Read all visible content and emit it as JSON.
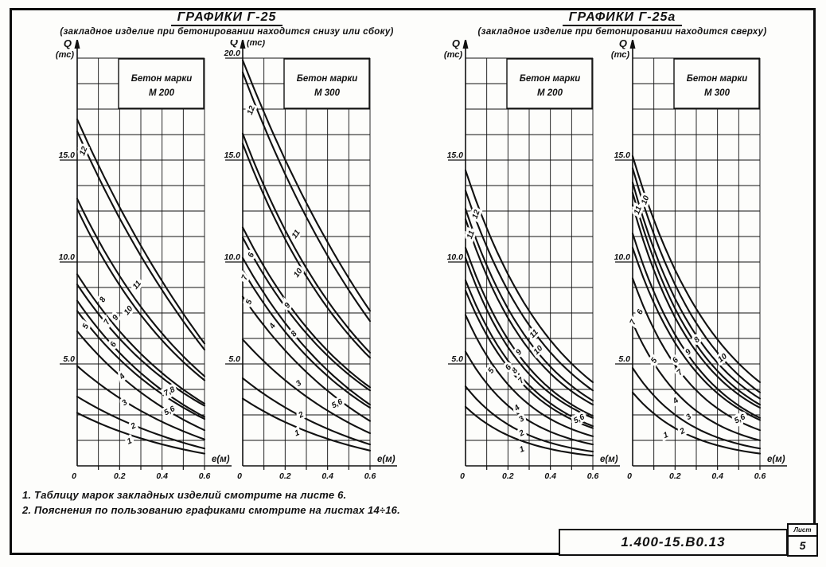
{
  "sections": [
    {
      "title": "ГРАФИКИ Г-25",
      "subtitle": "(закладное изделие при бетонировании находится снизу или сбоку)"
    },
    {
      "title": "ГРАФИКИ Г-25а",
      "subtitle": "(закладное изделие при бетонировании находится сверху)"
    }
  ],
  "notes": [
    "1. Таблицу марок закладных изделий смотрите на листе 6.",
    "2. Пояснения по пользованию графиками смотрите на листах 14÷16."
  ],
  "title_block": {
    "code": "1.400-15.В0.13",
    "sheet_label": "Лист",
    "sheet_number": "5"
  },
  "line_color": "#111111",
  "chart_data": [
    {
      "type": "line",
      "group": "ГРАФИКИ Г-25",
      "header": [
        "Бетон марки",
        "М 200"
      ],
      "ylabel": "Q",
      "yunit": "(тс)",
      "yunit_side": "below",
      "xlabel": "e(м)",
      "xlim": [
        0,
        0.6
      ],
      "ylim": [
        0,
        20
      ],
      "grid": {
        "on": true,
        "x_step": 0.1,
        "y_step": 1.25
      },
      "x_ticks": [
        {
          "v": 0,
          "t": "0"
        },
        {
          "v": 0.2,
          "t": "0.2"
        },
        {
          "v": 0.4,
          "t": "0.4"
        },
        {
          "v": 0.6,
          "t": "0.6"
        }
      ],
      "y_ticks": [
        {
          "v": 5,
          "t": "5.0"
        },
        {
          "v": 10,
          "t": "10.0"
        },
        {
          "v": 15,
          "t": "15.0"
        }
      ],
      "x": [
        0,
        0.3,
        0.6
      ],
      "series": [
        {
          "name": "1",
          "q": [
            2.6,
            1.35,
            0.6
          ]
        },
        {
          "name": "2",
          "q": [
            3.4,
            1.85,
            0.85
          ]
        },
        {
          "name": "3",
          "q": [
            4.9,
            2.7,
            1.3
          ]
        },
        {
          "name": "4",
          "q": [
            6.6,
            3.6,
            1.75
          ]
        },
        {
          "name": "5",
          "q": [
            7.6,
            4.3,
            2.3
          ]
        },
        {
          "name": "6",
          "q": [
            8.1,
            4.55,
            2.4
          ]
        },
        {
          "name": "7",
          "q": [
            8.9,
            5.2,
            2.95
          ]
        },
        {
          "name": "8",
          "q": [
            9.4,
            5.5,
            3.05
          ]
        },
        {
          "name": "9",
          "q": [
            12.6,
            7.4,
            4.2
          ]
        },
        {
          "name": "10",
          "q": [
            13.1,
            7.8,
            4.4
          ]
        },
        {
          "name": "11",
          "q": [
            16.4,
            10.3,
            5.7
          ]
        },
        {
          "name": "12",
          "q": [
            17.0,
            10.8,
            6.0
          ]
        }
      ],
      "labels": [
        {
          "t": "12",
          "e": 0.04,
          "q": 15.4,
          "r": -68
        },
        {
          "t": "11",
          "e": 0.29,
          "q": 8.8,
          "r": -50
        },
        {
          "t": "10",
          "e": 0.25,
          "q": 7.55,
          "r": -52
        },
        {
          "t": "9",
          "e": 0.19,
          "q": 7.2,
          "r": -55
        },
        {
          "t": "8",
          "e": 0.13,
          "q": 8.1,
          "r": -62
        },
        {
          "t": "7",
          "e": 0.15,
          "q": 7.0,
          "r": -62
        },
        {
          "t": "6",
          "e": 0.18,
          "q": 5.9,
          "r": -62
        },
        {
          "t": "5",
          "e": 0.05,
          "q": 6.8,
          "r": -65
        },
        {
          "t": "4",
          "e": 0.22,
          "q": 4.3,
          "r": -45
        },
        {
          "t": "3",
          "e": 0.23,
          "q": 3.0,
          "r": -35
        },
        {
          "t": "2",
          "e": 0.27,
          "q": 1.85,
          "r": -28
        },
        {
          "t": "1",
          "e": 0.25,
          "q": 1.1,
          "r": -22
        },
        {
          "t": "7,8",
          "e": 0.44,
          "q": 3.55,
          "r": -28
        },
        {
          "t": "5,6",
          "e": 0.44,
          "q": 2.6,
          "r": -28
        }
      ]
    },
    {
      "type": "line",
      "group": "ГРАФИКИ Г-25",
      "header": [
        "Бетон марки",
        "М 300"
      ],
      "ylabel": "Q",
      "yunit": "(тс)",
      "yunit_side": "right",
      "xlabel": "e(м)",
      "xlim": [
        0,
        0.6
      ],
      "ylim": [
        0,
        20
      ],
      "grid": {
        "on": true,
        "x_step": 0.1,
        "y_step": 1.25
      },
      "x_ticks": [
        {
          "v": 0,
          "t": "0"
        },
        {
          "v": 0.2,
          "t": "0.2"
        },
        {
          "v": 0.4,
          "t": "0.4"
        },
        {
          "v": 0.6,
          "t": "0.6"
        }
      ],
      "y_ticks": [
        {
          "v": 5,
          "t": "5.0"
        },
        {
          "v": 10,
          "t": "10.0"
        },
        {
          "v": 15,
          "t": "15.0"
        },
        {
          "v": 20,
          "t": "20.0"
        }
      ],
      "x": [
        0,
        0.3,
        0.6
      ],
      "series": [
        {
          "name": "1",
          "q": [
            3.3,
            1.7,
            0.75
          ]
        },
        {
          "name": "2",
          "q": [
            4.3,
            2.3,
            1.05
          ]
        },
        {
          "name": "3",
          "q": [
            6.2,
            3.4,
            1.6
          ]
        },
        {
          "name": "4",
          "q": [
            8.3,
            4.6,
            2.2
          ]
        },
        {
          "name": "5",
          "q": [
            9.6,
            5.4,
            2.85
          ]
        },
        {
          "name": "6",
          "q": [
            10.2,
            5.75,
            3.0
          ]
        },
        {
          "name": "7",
          "q": [
            11.2,
            6.5,
            3.7
          ]
        },
        {
          "name": "8",
          "q": [
            11.7,
            6.8,
            3.85
          ]
        },
        {
          "name": "9",
          "q": [
            15.8,
            9.3,
            5.3
          ]
        },
        {
          "name": "10",
          "q": [
            16.3,
            9.7,
            5.55
          ]
        },
        {
          "name": "11",
          "q": [
            19.3,
            12.2,
            7.1
          ]
        },
        {
          "name": "12",
          "q": [
            19.9,
            12.9,
            7.6
          ]
        }
      ],
      "labels": [
        {
          "t": "12",
          "e": 0.05,
          "q": 17.4,
          "r": -70
        },
        {
          "t": "11",
          "e": 0.26,
          "q": 11.3,
          "r": -55
        },
        {
          "t": "10",
          "e": 0.27,
          "q": 9.4,
          "r": -55
        },
        {
          "t": "9",
          "e": 0.22,
          "q": 7.8,
          "r": -55
        },
        {
          "t": "8",
          "e": 0.25,
          "q": 6.4,
          "r": -50
        },
        {
          "t": "7",
          "e": 0.02,
          "q": 9.2,
          "r": -70
        },
        {
          "t": "6",
          "e": 0.05,
          "q": 10.3,
          "r": -70
        },
        {
          "t": "5",
          "e": 0.04,
          "q": 8.0,
          "r": -70
        },
        {
          "t": "4",
          "e": 0.15,
          "q": 6.8,
          "r": -58
        },
        {
          "t": "3",
          "e": 0.27,
          "q": 3.95,
          "r": -35
        },
        {
          "t": "2",
          "e": 0.28,
          "q": 2.4,
          "r": -28
        },
        {
          "t": "1",
          "e": 0.26,
          "q": 1.5,
          "r": -22
        },
        {
          "t": "5,6",
          "e": 0.45,
          "q": 2.95,
          "r": -28
        }
      ]
    },
    {
      "type": "line",
      "group": "ГРАФИКИ Г-25а",
      "header": [
        "Бетон марки",
        "М 200"
      ],
      "ylabel": "Q",
      "yunit": "(тс)",
      "yunit_side": "below",
      "xlabel": "e(м)",
      "xlim": [
        0,
        0.6
      ],
      "ylim": [
        0,
        20
      ],
      "grid": {
        "on": true,
        "x_step": 0.1,
        "y_step": 1.25
      },
      "x_ticks": [
        {
          "v": 0,
          "t": "0"
        },
        {
          "v": 0.2,
          "t": "0.2"
        },
        {
          "v": 0.4,
          "t": "0.4"
        },
        {
          "v": 0.6,
          "t": "0.6"
        }
      ],
      "y_ticks": [
        {
          "v": 5,
          "t": "5.0"
        },
        {
          "v": 10,
          "t": "10.0"
        },
        {
          "v": 15,
          "t": "15.0"
        }
      ],
      "x": [
        0,
        0.3,
        0.6
      ],
      "series": [
        {
          "name": "1",
          "q": [
            2.9,
            1.1,
            0.5
          ]
        },
        {
          "name": "2",
          "q": [
            3.9,
            1.5,
            0.7
          ]
        },
        {
          "name": "3",
          "q": [
            5.6,
            2.2,
            1.05
          ]
        },
        {
          "name": "4",
          "q": [
            7.4,
            3.0,
            1.45
          ]
        },
        {
          "name": "5",
          "q": [
            8.6,
            3.7,
            1.85
          ]
        },
        {
          "name": "6",
          "q": [
            9.1,
            3.95,
            1.95
          ]
        },
        {
          "name": "7",
          "q": [
            10.2,
            4.5,
            2.35
          ]
        },
        {
          "name": "8",
          "q": [
            10.7,
            4.8,
            2.45
          ]
        },
        {
          "name": "9",
          "q": [
            12.1,
            5.7,
            3.0
          ]
        },
        {
          "name": "10",
          "q": [
            12.6,
            6.1,
            3.2
          ]
        },
        {
          "name": "11",
          "q": [
            13.5,
            6.9,
            3.7
          ]
        },
        {
          "name": "12",
          "q": [
            14.5,
            7.6,
            4.1
          ]
        }
      ],
      "labels": [
        {
          "t": "12",
          "e": 0.06,
          "q": 12.3,
          "r": -70
        },
        {
          "t": "11",
          "e": 0.035,
          "q": 11.3,
          "r": -70
        },
        {
          "t": "11",
          "e": 0.33,
          "q": 6.4,
          "r": -45
        },
        {
          "t": "10",
          "e": 0.35,
          "q": 5.6,
          "r": -45
        },
        {
          "t": "9",
          "e": 0.26,
          "q": 5.5,
          "r": -50
        },
        {
          "t": "8",
          "e": 0.24,
          "q": 4.6,
          "r": -50
        },
        {
          "t": "7",
          "e": 0.27,
          "q": 4.1,
          "r": -45
        },
        {
          "t": "6",
          "e": 0.21,
          "q": 4.75,
          "r": -50
        },
        {
          "t": "5",
          "e": 0.13,
          "q": 4.6,
          "r": -55
        },
        {
          "t": "4",
          "e": 0.25,
          "q": 2.75,
          "r": -40
        },
        {
          "t": "3",
          "e": 0.27,
          "q": 2.2,
          "r": -33
        },
        {
          "t": "2",
          "e": 0.27,
          "q": 1.5,
          "r": -28
        },
        {
          "t": "1",
          "e": 0.27,
          "q": 0.7,
          "r": -22
        },
        {
          "t": "5,6",
          "e": 0.54,
          "q": 2.2,
          "r": -28
        }
      ]
    },
    {
      "type": "line",
      "group": "ГРАФИКИ Г-25а",
      "header": [
        "Бетон марки",
        "М 300"
      ],
      "ylabel": "Q",
      "yunit": "(тс)",
      "yunit_side": "below",
      "xlabel": "e(м)",
      "xlim": [
        0,
        0.6
      ],
      "ylim": [
        0,
        20
      ],
      "grid": {
        "on": true,
        "x_step": 0.1,
        "y_step": 1.25
      },
      "x_ticks": [
        {
          "v": 0,
          "t": "0"
        },
        {
          "v": 0.2,
          "t": "0.2"
        },
        {
          "v": 0.4,
          "t": "0.4"
        },
        {
          "v": 0.6,
          "t": "0.6"
        }
      ],
      "y_ticks": [
        {
          "v": 5,
          "t": "5.0"
        },
        {
          "v": 10,
          "t": "10.0"
        },
        {
          "v": 15,
          "t": "15.0"
        }
      ],
      "x": [
        0,
        0.3,
        0.6
      ],
      "series": [
        {
          "name": "1",
          "q": [
            3.6,
            1.35,
            0.6
          ]
        },
        {
          "name": "2",
          "q": [
            4.8,
            1.85,
            0.85
          ]
        },
        {
          "name": "3",
          "q": [
            7.0,
            2.7,
            1.25
          ]
        },
        {
          "name": "4",
          "q": [
            9.2,
            3.7,
            1.75
          ]
        },
        {
          "name": "5",
          "q": [
            10.7,
            4.6,
            2.25
          ]
        },
        {
          "name": "6",
          "q": [
            11.4,
            4.9,
            2.35
          ]
        },
        {
          "name": "7",
          "q": [
            12.8,
            5.6,
            2.85
          ]
        },
        {
          "name": "8",
          "q": [
            13.4,
            5.95,
            3.0
          ]
        },
        {
          "name": "9",
          "q": [
            13.9,
            6.4,
            3.3
          ]
        },
        {
          "name": "10",
          "q": [
            14.6,
            7.0,
            3.6
          ]
        },
        {
          "name": "11",
          "q": [
            15.2,
            7.7,
            4.1
          ]
        }
      ],
      "labels": [
        {
          "t": "10",
          "e": 0.07,
          "q": 13.0,
          "r": -70
        },
        {
          "t": "11",
          "e": 0.035,
          "q": 12.5,
          "r": -70
        },
        {
          "t": "6",
          "e": 0.045,
          "q": 7.5,
          "r": -65
        },
        {
          "t": "7",
          "e": 0.012,
          "q": 7.0,
          "r": -65
        },
        {
          "t": "9",
          "e": 0.27,
          "q": 5.5,
          "r": -45
        },
        {
          "t": "10",
          "e": 0.43,
          "q": 5.2,
          "r": -38
        },
        {
          "t": "8",
          "e": 0.31,
          "q": 6.1,
          "r": -42
        },
        {
          "t": "7",
          "e": 0.23,
          "q": 4.5,
          "r": -45
        },
        {
          "t": "6",
          "e": 0.21,
          "q": 5.1,
          "r": -48
        },
        {
          "t": "5",
          "e": 0.11,
          "q": 5.1,
          "r": -55
        },
        {
          "t": "4",
          "e": 0.21,
          "q": 3.1,
          "r": -40
        },
        {
          "t": "3",
          "e": 0.27,
          "q": 2.3,
          "r": -33
        },
        {
          "t": "2",
          "e": 0.24,
          "q": 1.6,
          "r": -28
        },
        {
          "t": "1",
          "e": 0.16,
          "q": 1.4,
          "r": -22
        },
        {
          "t": "5,6",
          "e": 0.51,
          "q": 2.2,
          "r": -28
        }
      ]
    }
  ]
}
